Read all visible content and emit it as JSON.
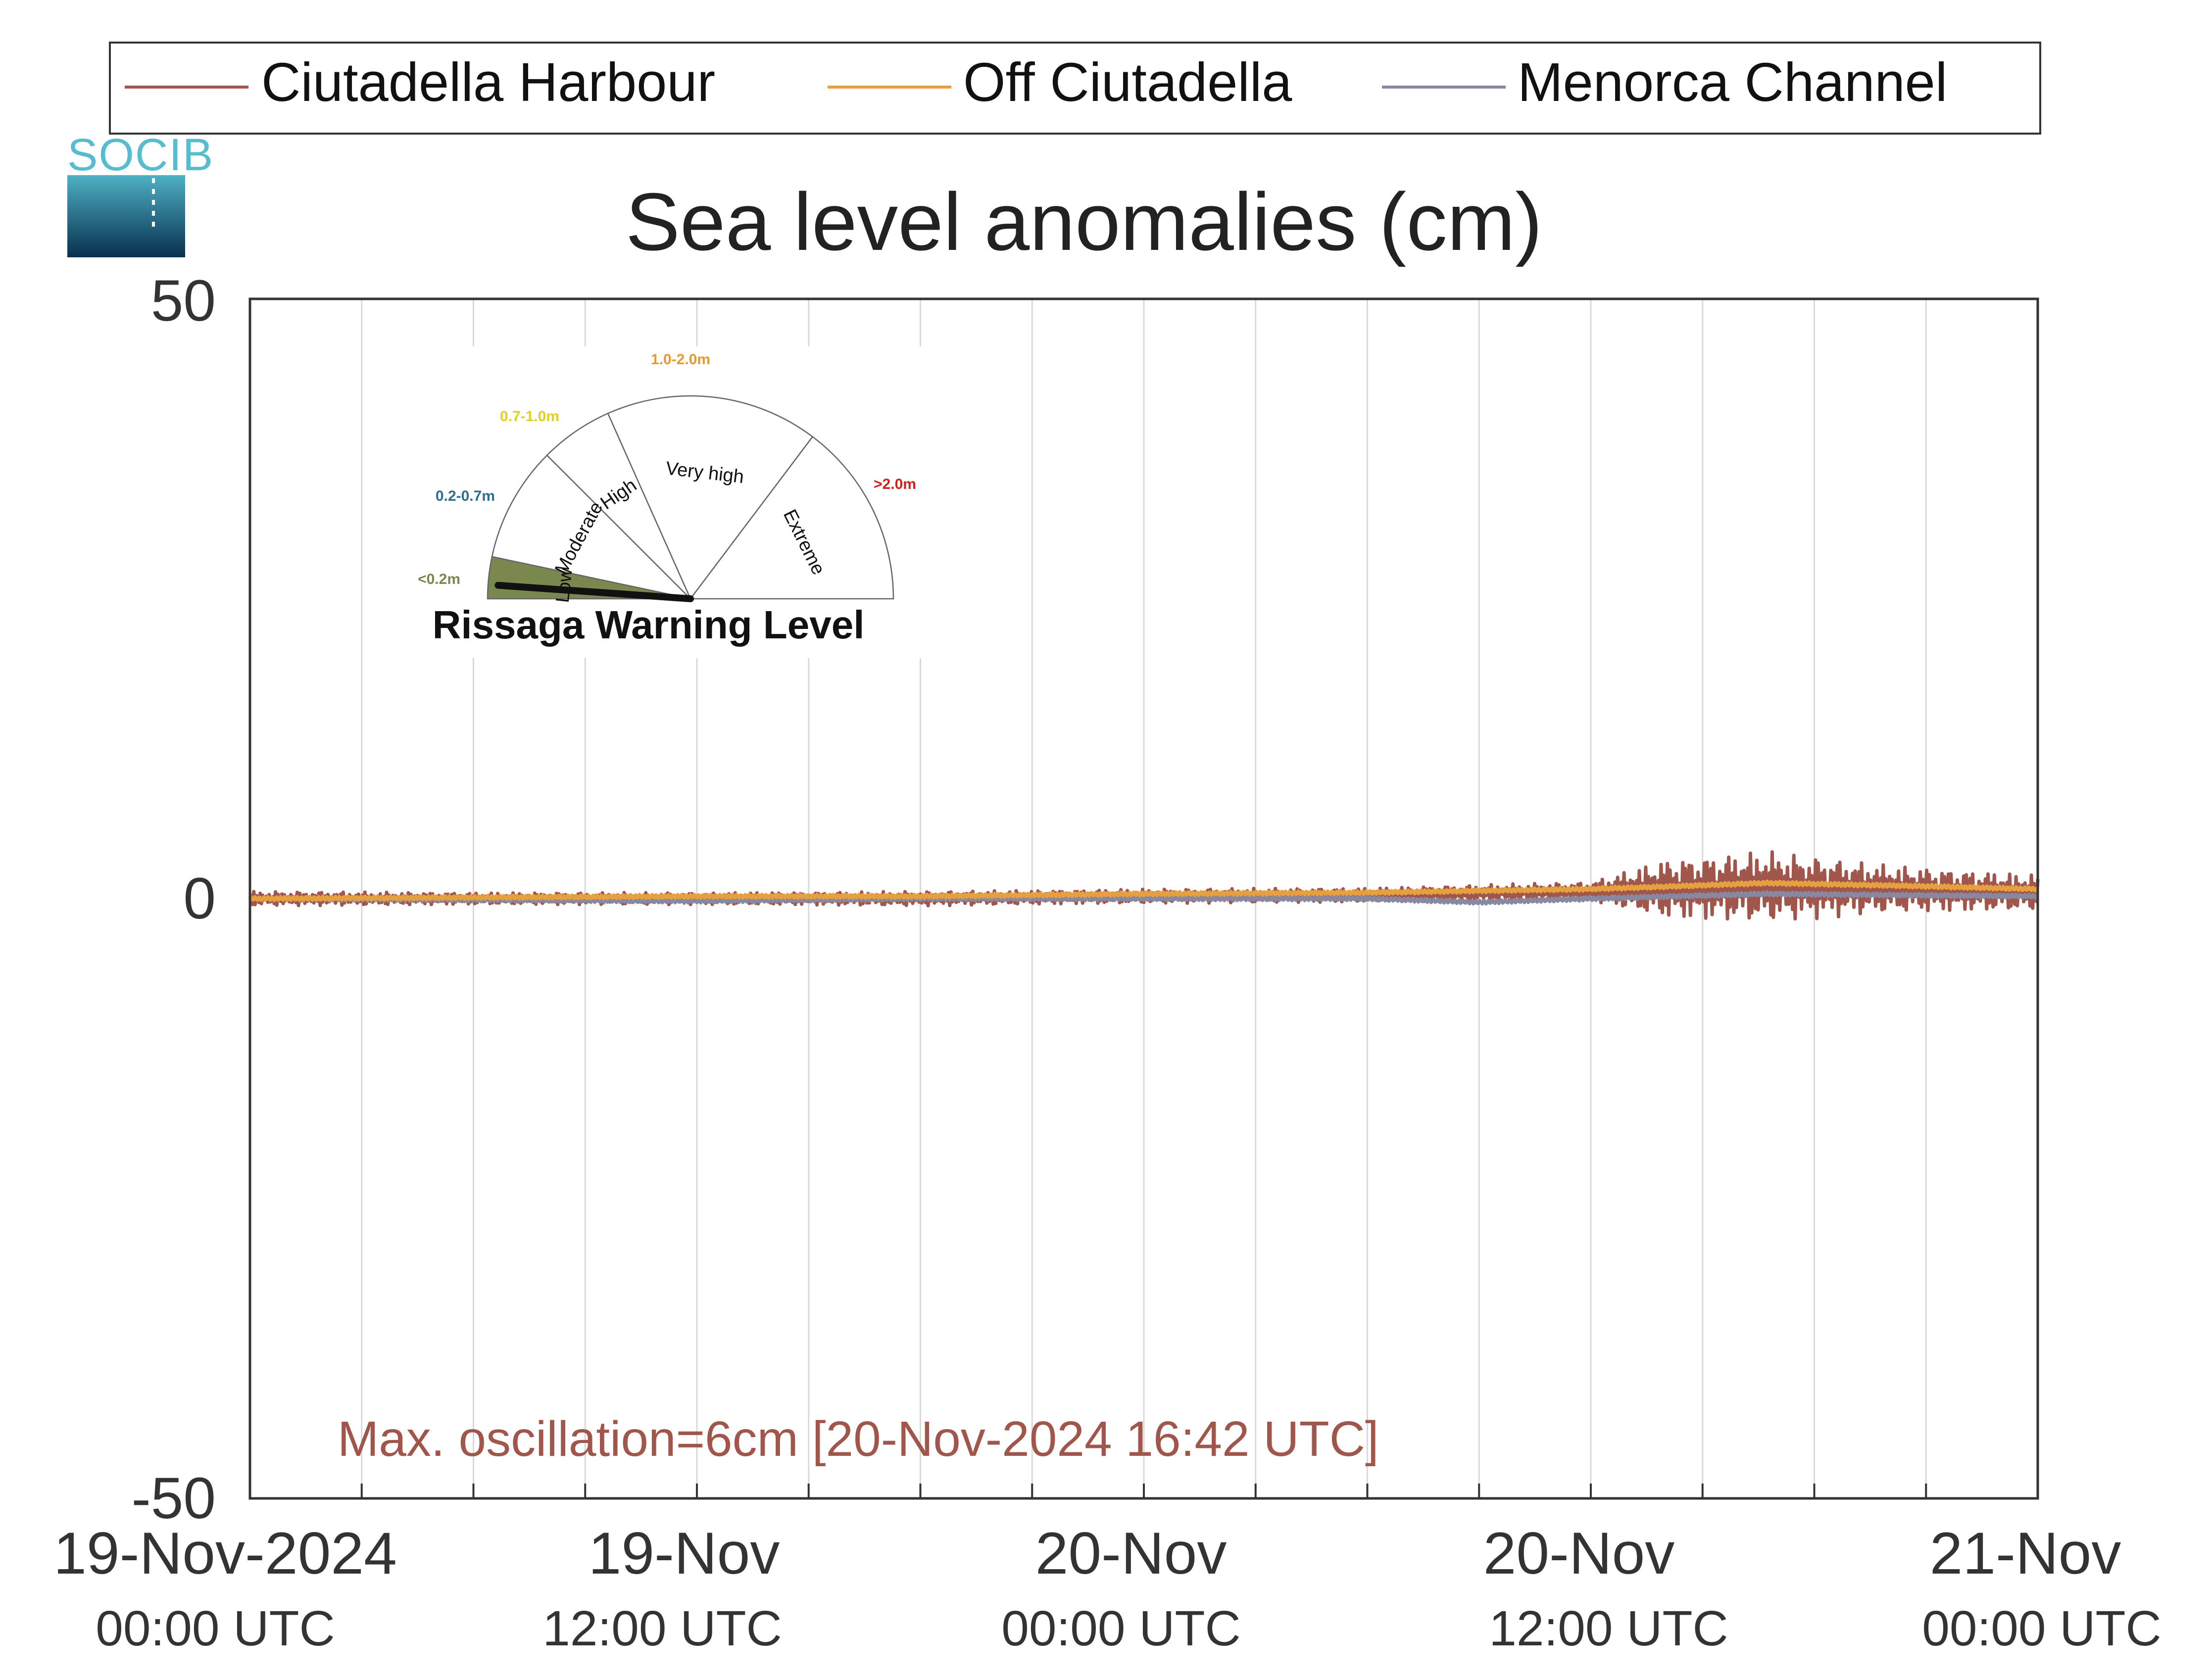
{
  "legend": {
    "items": [
      {
        "label": "Ciutadella Harbour",
        "color": "#a0564a"
      },
      {
        "label": "Off Ciutadella",
        "color": "#e6a040"
      },
      {
        "label": "Menorca Channel",
        "color": "#8888a0"
      }
    ]
  },
  "logo": {
    "text": "SOCIB"
  },
  "chart_data": {
    "type": "line",
    "title": "Sea level anomalies (cm)",
    "xlabel": "",
    "ylabel": "",
    "ylim": [
      -50,
      50
    ],
    "yticks": [
      "50",
      "0",
      "-50"
    ],
    "xlim": [
      "2024-11-19 00:00",
      "2024-11-21 00:00"
    ],
    "grid_x": true,
    "legend_position": "top",
    "xticks": [
      {
        "t": "2024-11-19 00:00",
        "line1": "19-Nov-2024",
        "line2": "00:00 UTC"
      },
      {
        "t": "2024-11-19 12:00",
        "line1": "19-Nov",
        "line2": "12:00 UTC"
      },
      {
        "t": "2024-11-20 00:00",
        "line1": "20-Nov",
        "line2": "00:00 UTC"
      },
      {
        "t": "2024-11-20 12:00",
        "line1": "20-Nov",
        "line2": "12:00 UTC"
      },
      {
        "t": "2024-11-21 00:00",
        "line1": "21-Nov",
        "line2": "00:00 UTC"
      }
    ],
    "series": [
      {
        "name": "Ciutadella Harbour",
        "color": "#a0564a",
        "style": "oscillating",
        "x": [
          "2024-11-19 00:00",
          "2024-11-19 06:00",
          "2024-11-19 12:00",
          "2024-11-19 18:00",
          "2024-11-20 00:00",
          "2024-11-20 06:00",
          "2024-11-20 12:00",
          "2024-11-20 14:00",
          "2024-11-20 16:42",
          "2024-11-20 20:00",
          "2024-11-21 00:00"
        ],
        "mean": [
          0.0,
          0.0,
          0.0,
          0.0,
          0.2,
          0.3,
          0.6,
          0.8,
          1.0,
          0.8,
          0.5
        ],
        "amplitude": [
          0.6,
          0.5,
          0.5,
          0.6,
          0.6,
          0.6,
          0.8,
          2.5,
          3.0,
          2.0,
          1.5
        ]
      },
      {
        "name": "Off Ciutadella",
        "color": "#e6a040",
        "style": "line",
        "x": [
          "2024-11-19 00:00",
          "2024-11-19 06:00",
          "2024-11-19 12:00",
          "2024-11-19 18:00",
          "2024-11-20 00:00",
          "2024-11-20 06:00",
          "2024-11-20 12:00",
          "2024-11-20 14:00",
          "2024-11-20 16:42",
          "2024-11-20 20:00",
          "2024-11-21 00:00"
        ],
        "y": [
          0.0,
          0.1,
          0.2,
          0.2,
          0.4,
          0.5,
          0.8,
          1.0,
          1.3,
          1.1,
          0.8
        ]
      },
      {
        "name": "Menorca Channel",
        "color": "#8888a0",
        "style": "line",
        "x": [
          "2024-11-19 00:00",
          "2024-11-19 06:00",
          "2024-11-19 12:00",
          "2024-11-19 18:00",
          "2024-11-20 00:00",
          "2024-11-20 06:00",
          "2024-11-20 09:00",
          "2024-11-20 12:00",
          "2024-11-20 16:42",
          "2024-11-20 20:00",
          "2024-11-21 00:00"
        ],
        "y": [
          0.0,
          -0.1,
          -0.2,
          0.0,
          0.0,
          0.0,
          -0.3,
          0.0,
          0.4,
          0.3,
          0.2
        ]
      }
    ],
    "annotation": {
      "text": "Max. oscillation=6cm [20-Nov-2024 16:42 UTC]",
      "color": "#a0564a"
    }
  },
  "gauge": {
    "title": "Rissaga Warning Level",
    "current_level": "Low",
    "sectors": [
      {
        "label": "Low",
        "range": "<0.2m",
        "color": "#7a8850",
        "start_deg": 180,
        "end_deg": 168
      },
      {
        "label": "Moderate",
        "range": "0.2-0.7m",
        "color": "#2e6e8e",
        "start_deg": 168,
        "end_deg": 135
      },
      {
        "label": "High",
        "range": "0.7-1.0m",
        "color": "#e0d020",
        "start_deg": 135,
        "end_deg": 114
      },
      {
        "label": "Very high",
        "range": "1.0-2.0m",
        "color": "#e89a30",
        "start_deg": 114,
        "end_deg": 53
      },
      {
        "label": "Extreme",
        "range": ">2.0m",
        "color": "#d02020",
        "start_deg": 53,
        "end_deg": 0
      }
    ]
  }
}
